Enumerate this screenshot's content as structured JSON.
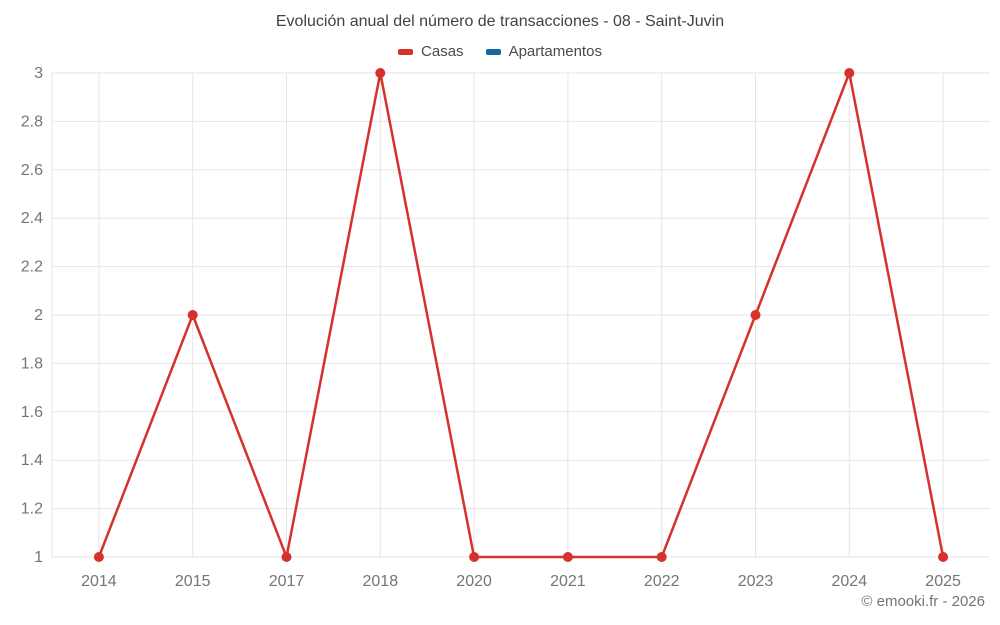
{
  "header": {
    "title": "Evolución anual del número de transacciones - 08 - Saint-Juvin"
  },
  "legend": {
    "items": [
      {
        "label": "Casas",
        "color": "#d5312d"
      },
      {
        "label": "Apartamentos",
        "color": "#15689e"
      }
    ]
  },
  "footer": {
    "credit": "© emooki.fr - 2026"
  },
  "chart_data": {
    "type": "line",
    "title": "Evolución anual del número de transacciones - 08 - Saint-Juvin",
    "categories": [
      "2014",
      "2015",
      "2017",
      "2018",
      "2020",
      "2021",
      "2022",
      "2023",
      "2024",
      "2025"
    ],
    "series": [
      {
        "name": "Casas",
        "color": "#d5312d",
        "values": [
          1,
          2,
          1,
          3,
          1,
          1,
          1,
          2,
          3,
          1
        ]
      },
      {
        "name": "Apartamentos",
        "color": "#15689e",
        "values": []
      }
    ],
    "xlabel": "",
    "ylabel": "",
    "ylim": [
      1,
      3
    ],
    "ytick_step": 0.2,
    "grid": true,
    "grid_color": "#e6e6e6",
    "tick_label_color": "#757575",
    "tick_font_size": 15,
    "legend_position": "top",
    "marker_radius": 5,
    "line_width": 2.5
  }
}
